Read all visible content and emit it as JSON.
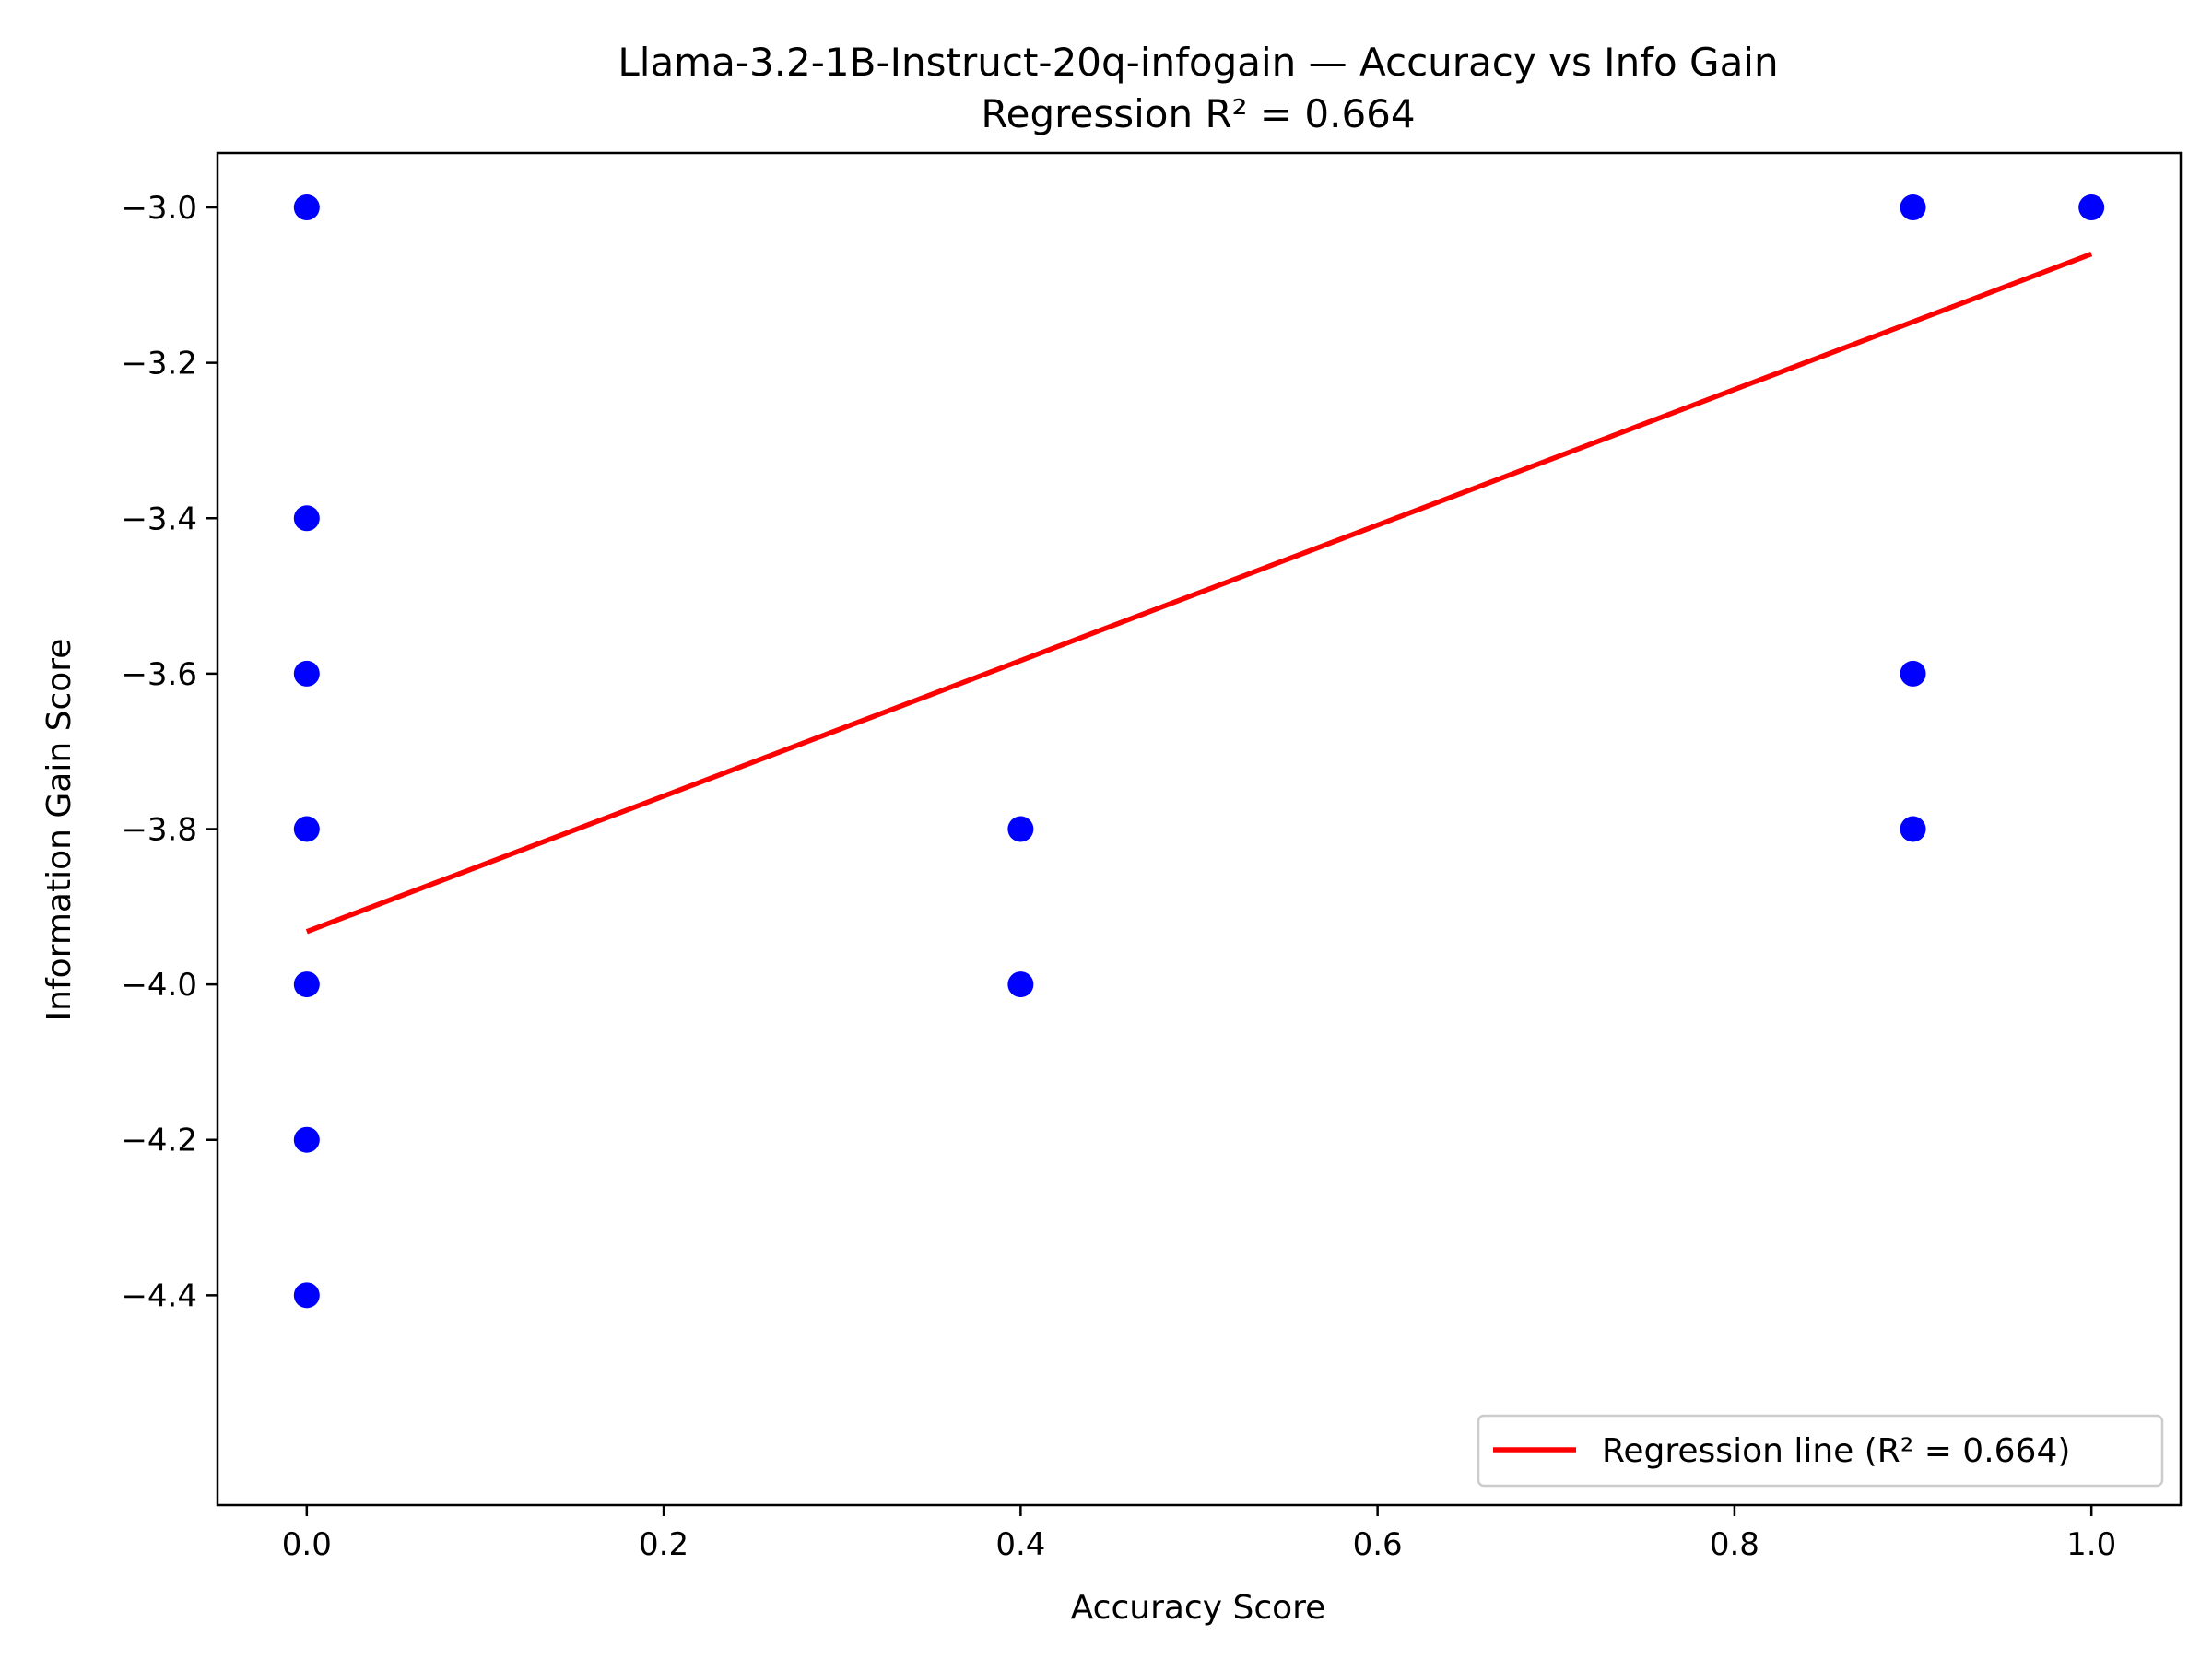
{
  "chart_data": {
    "type": "scatter",
    "title": "Llama-3.2-1B-Instruct-20q-infogain — Accuracy vs Info Gain",
    "subtitle": "Regression R² = 0.664",
    "xlabel": "Accuracy Score",
    "ylabel": "Information Gain Score",
    "xlim": [
      -0.05,
      1.05
    ],
    "ylim": [
      -4.67,
      -2.93
    ],
    "x_ticks": [
      0.0,
      0.2,
      0.4,
      0.6,
      0.8,
      1.0
    ],
    "x_tick_labels": [
      "0.0",
      "0.2",
      "0.4",
      "0.6",
      "0.8",
      "1.0"
    ],
    "y_ticks": [
      -3.0,
      -3.2,
      -3.4,
      -3.6,
      -3.8,
      -4.0,
      -4.2,
      -4.4
    ],
    "y_tick_labels": [
      "−3.0",
      "−3.2",
      "−3.4",
      "−3.6",
      "−3.8",
      "−4.0",
      "−4.2",
      "−4.4"
    ],
    "grid": false,
    "points": [
      {
        "x": 0.0,
        "y": -3.0
      },
      {
        "x": 0.0,
        "y": -3.4
      },
      {
        "x": 0.0,
        "y": -3.6
      },
      {
        "x": 0.0,
        "y": -3.8
      },
      {
        "x": 0.0,
        "y": -4.0
      },
      {
        "x": 0.0,
        "y": -4.2
      },
      {
        "x": 0.0,
        "y": -4.4
      },
      {
        "x": 0.4,
        "y": -3.8
      },
      {
        "x": 0.4,
        "y": -4.0
      },
      {
        "x": 0.9,
        "y": -3.0
      },
      {
        "x": 0.9,
        "y": -3.6
      },
      {
        "x": 0.9,
        "y": -3.8
      },
      {
        "x": 1.0,
        "y": -3.0
      }
    ],
    "regression_line": {
      "x": [
        0.0,
        1.0
      ],
      "y": [
        -3.932,
        -3.06
      ]
    },
    "legend": {
      "placement": "lower-right",
      "entries": [
        {
          "label": "Regression line (R² = 0.664)",
          "color": "#ff0000"
        }
      ]
    },
    "colors": {
      "points": "#0000ff",
      "line": "#ff0000"
    }
  }
}
